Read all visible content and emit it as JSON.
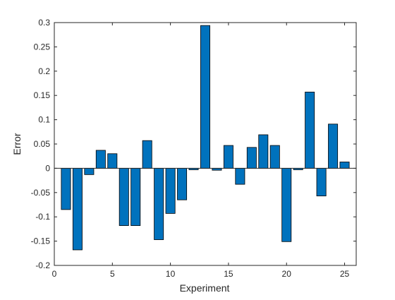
{
  "chart_data": {
    "type": "bar",
    "xlabel": "Experiment",
    "ylabel": "Error",
    "xlim": [
      0,
      26
    ],
    "ylim": [
      -0.2,
      0.3
    ],
    "x_ticks": [
      0,
      5,
      10,
      15,
      20,
      25
    ],
    "y_ticks": [
      -0.2,
      -0.15,
      -0.1,
      -0.05,
      0,
      0.05,
      0.1,
      0.15,
      0.2,
      0.25,
      0.3
    ],
    "x_tick_labels": [
      "0",
      "5",
      "10",
      "15",
      "20",
      "25"
    ],
    "y_tick_labels": [
      "-0.2",
      "-0.15",
      "-0.1",
      "-0.05",
      "0",
      "0.05",
      "0.1",
      "0.15",
      "0.2",
      "0.25",
      "0.3"
    ],
    "categories": [
      1,
      2,
      3,
      4,
      5,
      6,
      7,
      8,
      9,
      10,
      11,
      12,
      13,
      14,
      15,
      16,
      17,
      18,
      19,
      20,
      21,
      22,
      23,
      24,
      25
    ],
    "values": [
      -0.085,
      -0.168,
      -0.013,
      0.037,
      0.03,
      -0.118,
      -0.118,
      0.057,
      -0.147,
      -0.093,
      -0.065,
      -0.003,
      0.294,
      -0.004,
      0.047,
      -0.033,
      0.043,
      0.069,
      0.047,
      -0.151,
      -0.003,
      0.157,
      -0.057,
      0.091,
      0.013
    ],
    "bar_color": "#0072BD",
    "edge_color": "#000000",
    "grid": false,
    "legend": "none"
  }
}
